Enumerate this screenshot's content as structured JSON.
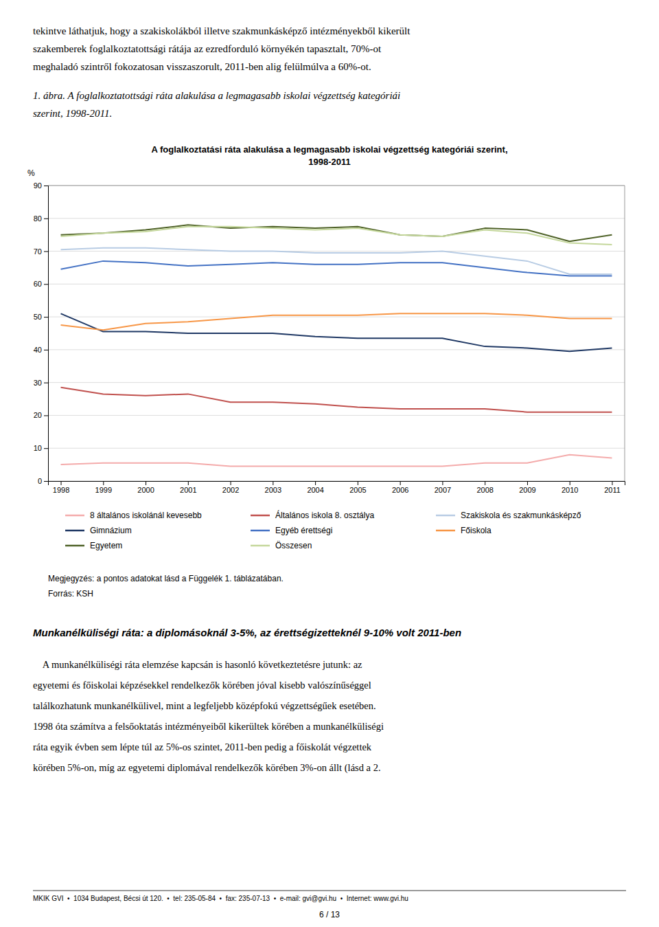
{
  "chart_data": {
    "type": "line",
    "title": "A foglalkoztatási ráta alakulása a legmagasabb iskolai végzettség kategóriái szerint,",
    "subtitle": "1998-2011",
    "ylabel": "%",
    "x": [
      1998,
      1999,
      2000,
      2001,
      2002,
      2003,
      2004,
      2005,
      2006,
      2007,
      2008,
      2009,
      2010,
      2011
    ],
    "series": [
      {
        "name": "8 általános iskolánál kevesebb",
        "color": "#F4ABAB",
        "values": [
          5.0,
          5.5,
          5.5,
          5.5,
          4.5,
          4.5,
          4.5,
          4.5,
          4.5,
          4.5,
          5.5,
          5.5,
          8.0,
          7.0
        ]
      },
      {
        "name": "Általános iskola 8. osztálya",
        "color": "#C0504D",
        "values": [
          28.5,
          26.5,
          26.0,
          26.5,
          24.0,
          24.0,
          23.5,
          22.5,
          22.0,
          22.0,
          22.0,
          21.0,
          21.0,
          21.0
        ]
      },
      {
        "name": "Szakiskola és szakmunkásképző",
        "color": "#B8CCE4",
        "values": [
          70.5,
          71.0,
          71.0,
          70.5,
          70.0,
          70.0,
          69.5,
          69.5,
          69.5,
          70.0,
          68.5,
          67.0,
          63.0,
          63.0
        ]
      },
      {
        "name": "Gimnázium",
        "color": "#1F3864",
        "values": [
          51.0,
          45.5,
          45.5,
          45.0,
          45.0,
          45.0,
          44.0,
          43.5,
          43.5,
          43.5,
          41.0,
          40.5,
          39.5,
          40.5
        ]
      },
      {
        "name": "Egyéb érettségi",
        "color": "#4472C4",
        "values": [
          64.5,
          67.0,
          66.5,
          65.5,
          66.0,
          66.5,
          66.0,
          66.0,
          66.5,
          66.5,
          65.0,
          63.5,
          62.5,
          62.5
        ]
      },
      {
        "name": "Főiskola",
        "color": "#F79646",
        "values": [
          47.5,
          46.0,
          48.0,
          48.5,
          49.5,
          50.5,
          50.5,
          50.5,
          51.0,
          51.0,
          51.0,
          50.5,
          49.5,
          49.5
        ]
      },
      {
        "name": "Egyetem",
        "color": "#4F6228",
        "values": [
          75.0,
          75.5,
          76.5,
          78.0,
          77.0,
          77.5,
          77.0,
          77.5,
          75.0,
          74.5,
          77.0,
          76.5,
          73.0,
          75.0
        ]
      },
      {
        "name": "Összesen",
        "color": "#C4D79B",
        "values": [
          74.5,
          75.5,
          76.0,
          77.5,
          77.5,
          77.0,
          76.5,
          77.0,
          75.0,
          74.5,
          76.5,
          75.5,
          72.5,
          72.0
        ]
      }
    ],
    "xlim": [
      1997.7,
      2011.3
    ],
    "xticks": [
      1998,
      1999,
      2000,
      2001,
      2002,
      2003,
      2004,
      2005,
      2006,
      2007,
      2008,
      2009,
      2010,
      2011
    ],
    "ylim": [
      0,
      90
    ],
    "yticks": [
      0,
      10,
      20,
      30,
      40,
      50,
      60,
      70,
      80,
      90
    ],
    "grid": true,
    "legend": "bottom"
  },
  "page_text_top": [
    "tekintve láthatjuk, hogy a szakiskolákból illetve szakmunkásképző intézményekből kikerült",
    "szakemberek foglalkoztatottsági rátája az ezredforduló környékén tapasztalt, 70%-ot",
    "meghaladó szintről fokozatosan visszaszorult, 2011-ben alig felülmúlva a 60%-ot."
  ],
  "figure_caption": [
    "1. ábra. A foglalkoztatottsági ráta alakulása a legmagasabb iskolai végzettség kategóriái",
    "szerint, 1998-2011."
  ],
  "page_text_bottom": [
    "Megjegyzés: a pontos adatokat lásd a Függelék 1. táblázatában.",
    "Forrás: KSH"
  ],
  "section_title": "Munkanélküliségi ráta: a diplomásoknál 3-5%, az érettségizetteknél 9-10% volt 2011-ben",
  "body_text": [
    "    A munkanélküliségi ráta elemzése kapcsán is hasonló következtetésre jutunk: az",
    "egyetemi és főiskolai képzésekkel rendelkezők körében jóval kisebb valószínűséggel",
    "találkozhatunk munkanélkülivel, mint a legfeljebb középfokú végzettségűek esetében.",
    "1998 óta számítva a felsőoktatás intézményeiből kikerültek körében a munkanélküliségi",
    "ráta egyik évben sem lépte túl az 5%-os szintet, 2011-ben pedig a főiskolát végzettek",
    "körében 5%-on, míg az egyetemi diplomával rendelkezők körében 3%-on állt (lásd a 2."
  ],
  "footer": "MKIK GVI  •  1034 Budapest, Bécsi út 120.  •  tel: 235-05-84  •  fax: 235-07-13  •  e-mail: gvi@gvi.hu  •  Internet: www.gvi.hu",
  "page_number": "6 / 13"
}
